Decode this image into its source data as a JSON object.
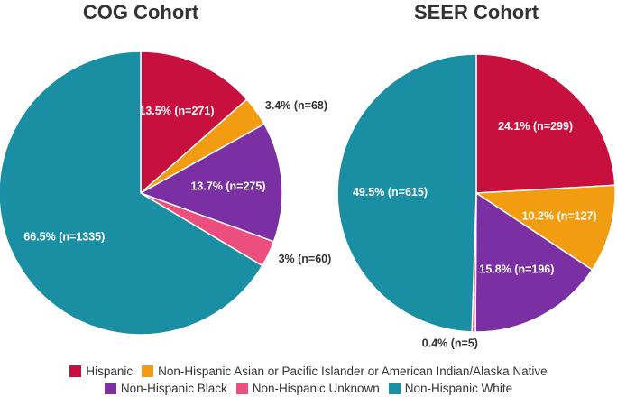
{
  "chart_data": [
    {
      "type": "pie",
      "title": "COG Cohort",
      "start": "12 o'clock",
      "direction": "clockwise",
      "slices": [
        {
          "category": "Hispanic",
          "percent": 13.5,
          "n": 271,
          "label": "13.5% (n=271)",
          "label_pos": "inside"
        },
        {
          "category": "Non-Hispanic Asian or Pacific Islander or American Indian/Alaska Native",
          "percent": 3.4,
          "n": 68,
          "label": "3.4% (n=68)",
          "label_pos": "outside"
        },
        {
          "category": "Non-Hispanic Black",
          "percent": 13.7,
          "n": 275,
          "label": "13.7% (n=275)",
          "label_pos": "inside"
        },
        {
          "category": "Non-Hispanic Unknown",
          "percent": 3.0,
          "n": 60,
          "label": "3% (n=60)",
          "label_pos": "outside"
        },
        {
          "category": "Non-Hispanic White",
          "percent": 66.5,
          "n": 1335,
          "label": "66.5% (n=1335)",
          "label_pos": "inside"
        }
      ]
    },
    {
      "type": "pie",
      "title": "SEER Cohort",
      "start": "12 o'clock",
      "direction": "clockwise",
      "slices": [
        {
          "category": "Hispanic",
          "percent": 24.1,
          "n": 299,
          "label": "24.1% (n=299)",
          "label_pos": "inside"
        },
        {
          "category": "Non-Hispanic Asian or Pacific Islander or American Indian/Alaska Native",
          "percent": 10.2,
          "n": 127,
          "label": "10.2% (n=127)",
          "label_pos": "inside"
        },
        {
          "category": "Non-Hispanic Black",
          "percent": 15.8,
          "n": 196,
          "label": "15.8% (n=196)",
          "label_pos": "inside"
        },
        {
          "category": "Non-Hispanic Unknown",
          "percent": 0.4,
          "n": 5,
          "label": "0.4% (n=5)",
          "label_pos": "outside"
        },
        {
          "category": "Non-Hispanic White",
          "percent": 49.5,
          "n": 615,
          "label": "49.5% (n=615)",
          "label_pos": "inside"
        }
      ]
    }
  ],
  "legend": [
    {
      "label": "Hispanic",
      "color": "#c8103e"
    },
    {
      "label": "Non-Hispanic Asian or Pacific Islander or American Indian/Alaska Native",
      "color": "#f29c11"
    },
    {
      "label": "Non-Hispanic Black",
      "color": "#7a2fa3"
    },
    {
      "label": "Non-Hispanic Unknown",
      "color": "#ec4f7e"
    },
    {
      "label": "Non-Hispanic White",
      "color": "#1a8ea3"
    }
  ],
  "colors": {
    "label_inside": "#ffffff",
    "label_outside": "#333333",
    "slice_stroke": "#ffffff"
  }
}
